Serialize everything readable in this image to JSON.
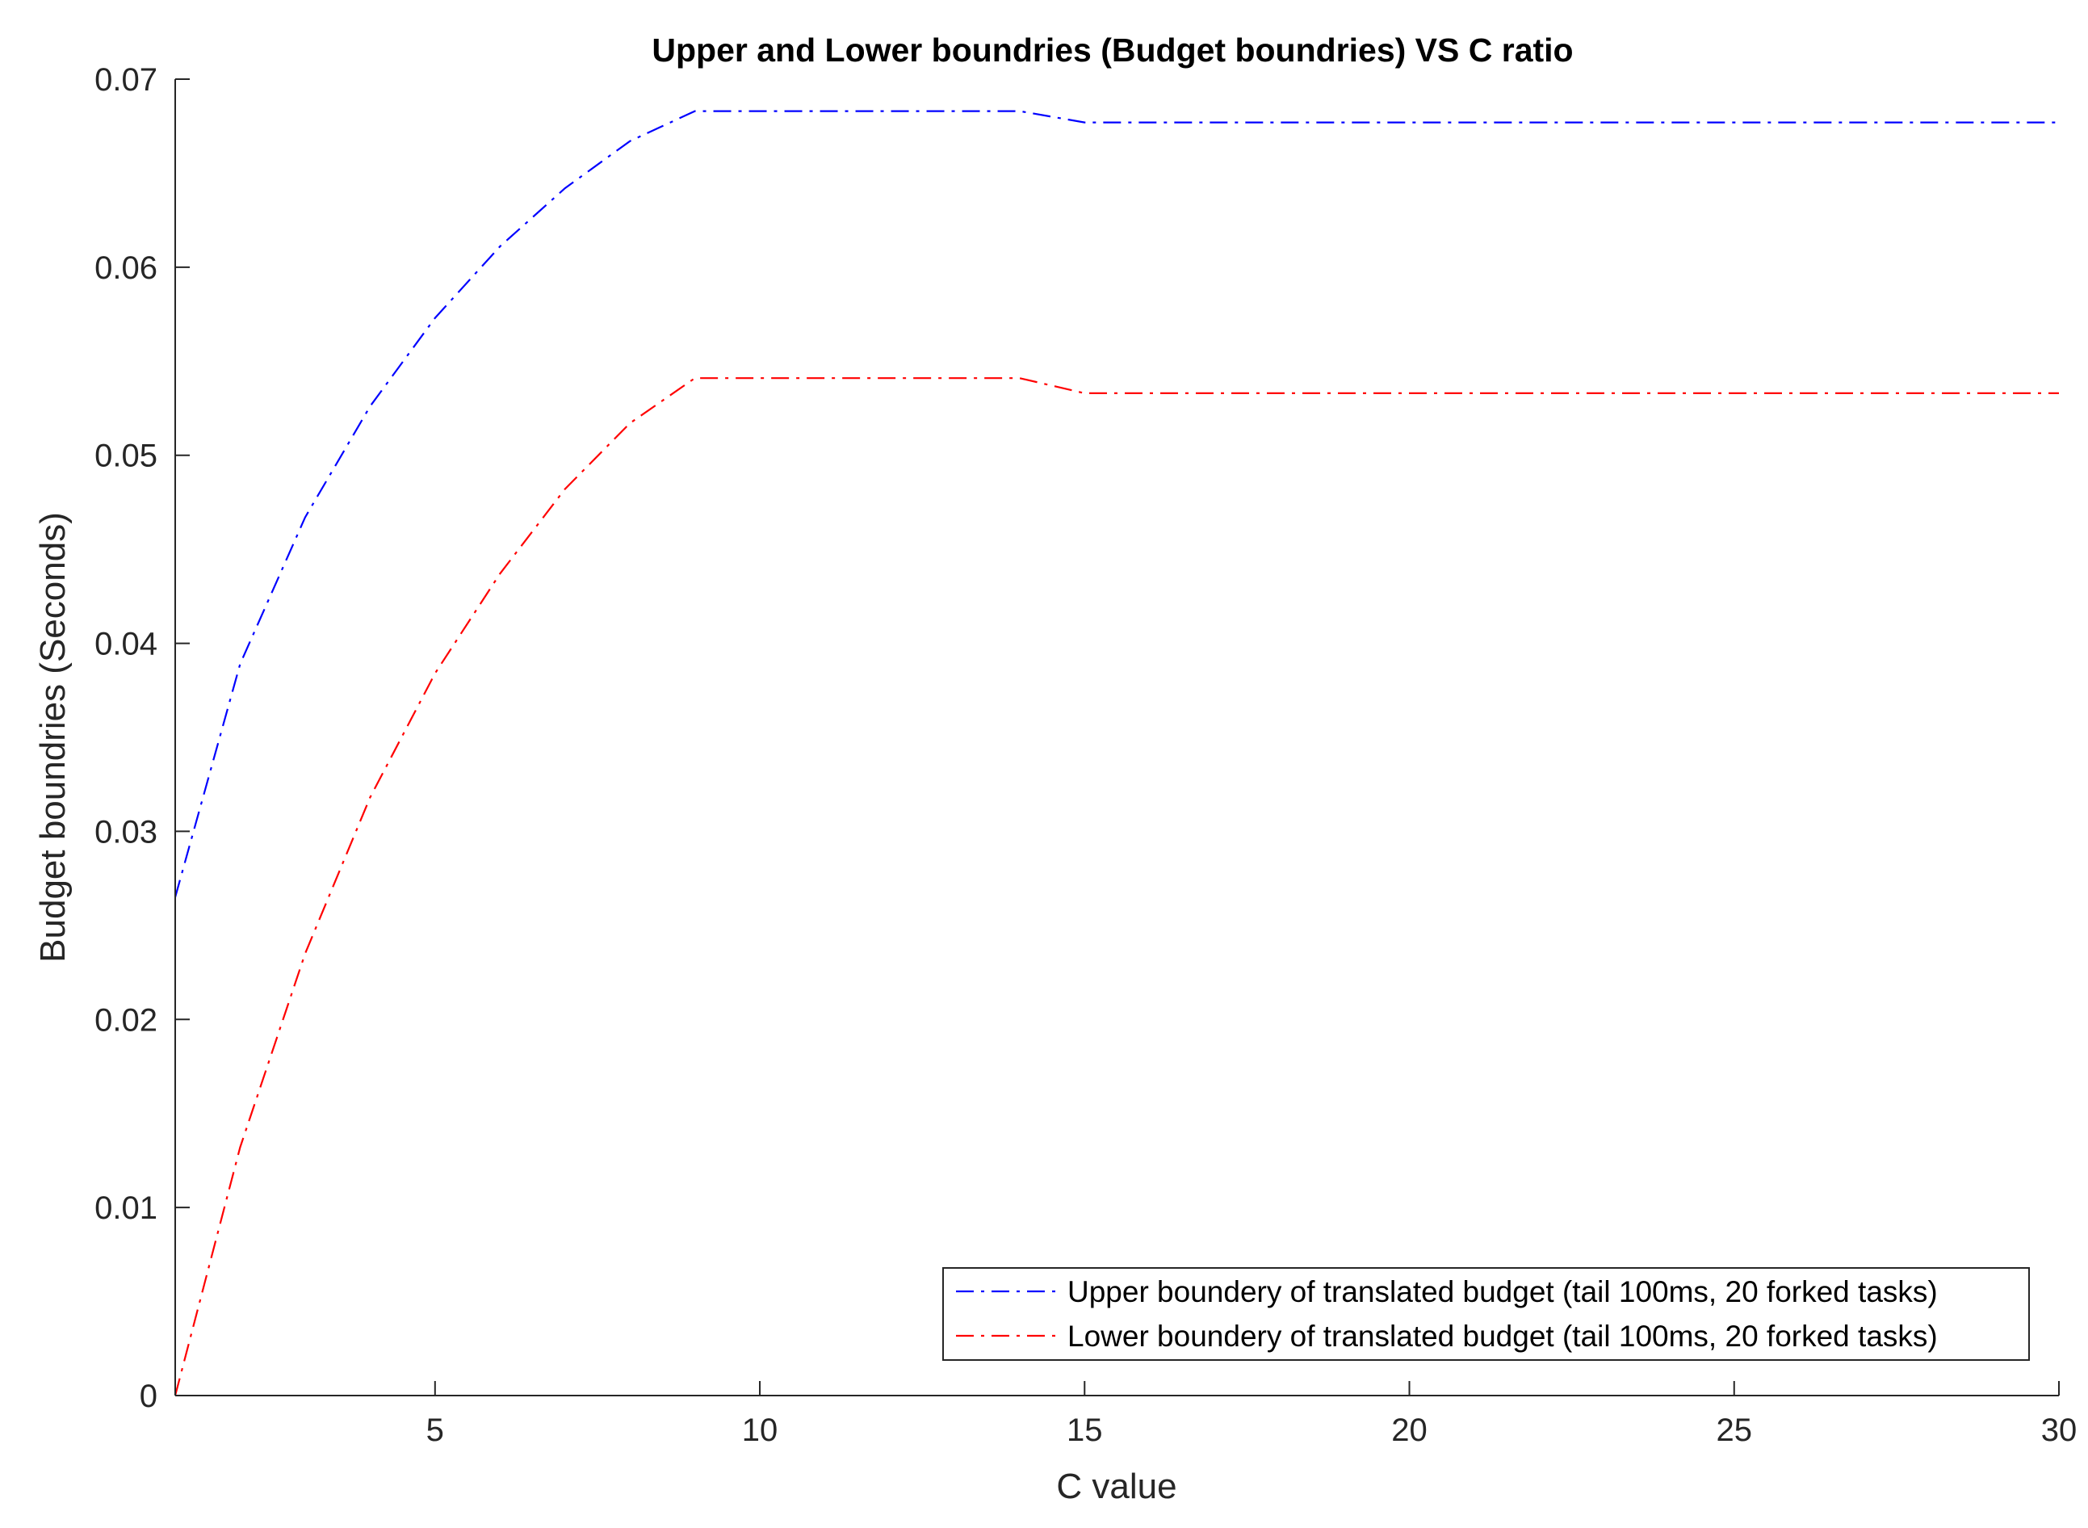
{
  "chart_data": {
    "type": "line",
    "title": "Upper and Lower boundries (Budget boundries) VS C ratio",
    "xlabel": "C value",
    "ylabel": "Budget boundries (Seconds)",
    "xlim": [
      1,
      30
    ],
    "ylim": [
      0,
      0.07
    ],
    "xticks": [
      5,
      10,
      15,
      20,
      25,
      30
    ],
    "xtick_labels": [
      "5",
      "10",
      "15",
      "20",
      "25",
      "30"
    ],
    "yticks": [
      0,
      0.01,
      0.02,
      0.03,
      0.04,
      0.05,
      0.06,
      0.07
    ],
    "ytick_labels": [
      "0",
      "0.01",
      "0.02",
      "0.03",
      "0.04",
      "0.05",
      "0.06",
      "0.07"
    ],
    "grid": false,
    "legend_position": "bottom-right",
    "x": [
      1,
      2,
      3,
      4,
      5,
      6,
      7,
      8,
      9,
      10,
      11,
      12,
      13,
      14,
      15,
      16,
      17,
      18,
      19,
      20,
      21,
      22,
      23,
      24,
      25,
      26,
      27,
      28,
      29,
      30
    ],
    "series": [
      {
        "name": "Upper boundery of translated budget (tail 100ms, 20 forked tasks)",
        "color": "#0000ff",
        "line_style": "dash-dot",
        "values": [
          0.0265,
          0.0389,
          0.0467,
          0.0526,
          0.0573,
          0.0611,
          0.0642,
          0.0667,
          0.0683,
          0.0683,
          0.0683,
          0.0683,
          0.0683,
          0.0683,
          0.0677,
          0.0677,
          0.0677,
          0.0677,
          0.0677,
          0.0677,
          0.0677,
          0.0677,
          0.0677,
          0.0677,
          0.0677,
          0.0677,
          0.0677,
          0.0677,
          0.0677,
          0.0677
        ]
      },
      {
        "name": "Lower boundery of translated budget (tail 100ms, 20 forked tasks)",
        "color": "#ff0000",
        "line_style": "dash-dot",
        "values": [
          0.0,
          0.0132,
          0.0235,
          0.0318,
          0.0384,
          0.0437,
          0.0482,
          0.0517,
          0.0541,
          0.0541,
          0.0541,
          0.0541,
          0.0541,
          0.0541,
          0.0533,
          0.0533,
          0.0533,
          0.0533,
          0.0533,
          0.0533,
          0.0533,
          0.0533,
          0.0533,
          0.0533,
          0.0533,
          0.0533,
          0.0533,
          0.0533,
          0.0533,
          0.0533
        ]
      }
    ]
  }
}
